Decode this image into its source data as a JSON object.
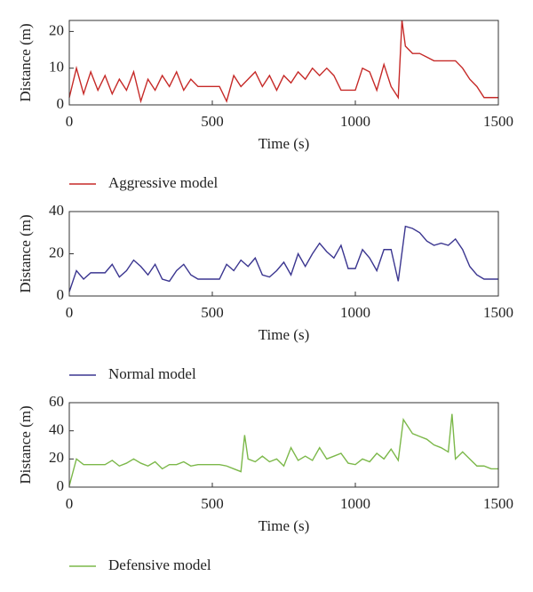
{
  "chart_data": [
    {
      "type": "line",
      "xlabel": "Time (s)",
      "ylabel": "Distance (m)",
      "x": [
        0,
        25,
        50,
        75,
        100,
        125,
        150,
        175,
        200,
        225,
        250,
        275,
        300,
        325,
        350,
        375,
        400,
        425,
        450,
        475,
        500,
        525,
        550,
        575,
        600,
        625,
        650,
        675,
        700,
        725,
        750,
        775,
        800,
        825,
        850,
        875,
        900,
        925,
        950,
        975,
        1000,
        1025,
        1050,
        1075,
        1100,
        1125,
        1150,
        1163,
        1175,
        1200,
        1225,
        1250,
        1275,
        1300,
        1325,
        1350,
        1375,
        1400,
        1425,
        1450,
        1475,
        1500
      ],
      "series": [
        {
          "name": "Aggressive model",
          "color": "#c62a28",
          "values": [
            2,
            10,
            3,
            9,
            4,
            8,
            3,
            7,
            4,
            9,
            1,
            7,
            4,
            8,
            5,
            9,
            4,
            7,
            5,
            5,
            5,
            5,
            1,
            8,
            5,
            7,
            9,
            5,
            8,
            4,
            8,
            6,
            9,
            7,
            10,
            8,
            10,
            8,
            4,
            4,
            4,
            10,
            9,
            4,
            11,
            5,
            2,
            23,
            16,
            14,
            14,
            13,
            12,
            12,
            12,
            12,
            10,
            7,
            5,
            2,
            2,
            2
          ]
        }
      ],
      "xlim": [
        0,
        1500
      ],
      "xticks": [
        0,
        500,
        1000,
        1500
      ],
      "ylim": [
        0,
        23
      ],
      "yticks": [
        0,
        10,
        20
      ],
      "legend": "bottom"
    },
    {
      "type": "line",
      "xlabel": "Time (s)",
      "ylabel": "Distance (m)",
      "x": [
        0,
        25,
        50,
        75,
        100,
        125,
        150,
        175,
        200,
        225,
        250,
        275,
        300,
        325,
        350,
        375,
        400,
        425,
        450,
        475,
        500,
        525,
        550,
        575,
        600,
        625,
        650,
        675,
        700,
        725,
        750,
        775,
        800,
        825,
        850,
        875,
        900,
        925,
        950,
        975,
        1000,
        1025,
        1050,
        1075,
        1100,
        1125,
        1150,
        1175,
        1200,
        1225,
        1250,
        1275,
        1300,
        1325,
        1350,
        1375,
        1400,
        1425,
        1450,
        1475,
        1500
      ],
      "series": [
        {
          "name": "Normal model",
          "color": "#3b3690",
          "values": [
            2,
            12,
            8,
            11,
            11,
            11,
            15,
            9,
            12,
            17,
            14,
            10,
            15,
            8,
            7,
            12,
            15,
            10,
            8,
            8,
            8,
            8,
            15,
            12,
            17,
            14,
            18,
            10,
            9,
            12,
            16,
            10,
            20,
            14,
            20,
            25,
            21,
            18,
            24,
            13,
            13,
            22,
            18,
            12,
            22,
            22,
            7,
            33,
            32,
            30,
            26,
            24,
            25,
            24,
            27,
            22,
            14,
            10,
            8,
            8,
            8
          ]
        }
      ],
      "xlim": [
        0,
        1500
      ],
      "xticks": [
        0,
        500,
        1000,
        1500
      ],
      "ylim": [
        0,
        40
      ],
      "yticks": [
        0,
        20,
        40
      ],
      "legend": "bottom"
    },
    {
      "type": "line",
      "xlabel": "Time (s)",
      "ylabel": "Distance (m)",
      "x": [
        0,
        25,
        50,
        75,
        100,
        125,
        150,
        175,
        200,
        225,
        250,
        275,
        300,
        325,
        350,
        375,
        400,
        425,
        450,
        475,
        500,
        525,
        550,
        575,
        600,
        613,
        625,
        650,
        675,
        700,
        725,
        750,
        775,
        800,
        825,
        850,
        875,
        900,
        925,
        950,
        975,
        1000,
        1025,
        1050,
        1075,
        1100,
        1125,
        1150,
        1168,
        1200,
        1225,
        1250,
        1275,
        1300,
        1325,
        1338,
        1350,
        1375,
        1400,
        1425,
        1450,
        1475,
        1500
      ],
      "series": [
        {
          "name": "Defensive model",
          "color": "#7cb84a",
          "values": [
            1,
            20,
            16,
            16,
            16,
            16,
            19,
            15,
            17,
            20,
            17,
            15,
            18,
            13,
            16,
            16,
            18,
            15,
            16,
            16,
            16,
            16,
            15,
            13,
            11,
            37,
            20,
            18,
            22,
            18,
            20,
            15,
            28,
            19,
            22,
            19,
            28,
            20,
            22,
            24,
            17,
            16,
            20,
            18,
            24,
            20,
            27,
            19,
            48,
            38,
            36,
            34,
            30,
            28,
            25,
            52,
            20,
            25,
            20,
            15,
            15,
            13,
            13
          ]
        }
      ],
      "xlim": [
        0,
        1500
      ],
      "xticks": [
        0,
        500,
        1000,
        1500
      ],
      "ylim": [
        0,
        60
      ],
      "yticks": [
        0,
        20,
        40,
        60
      ],
      "legend": "bottom"
    }
  ]
}
